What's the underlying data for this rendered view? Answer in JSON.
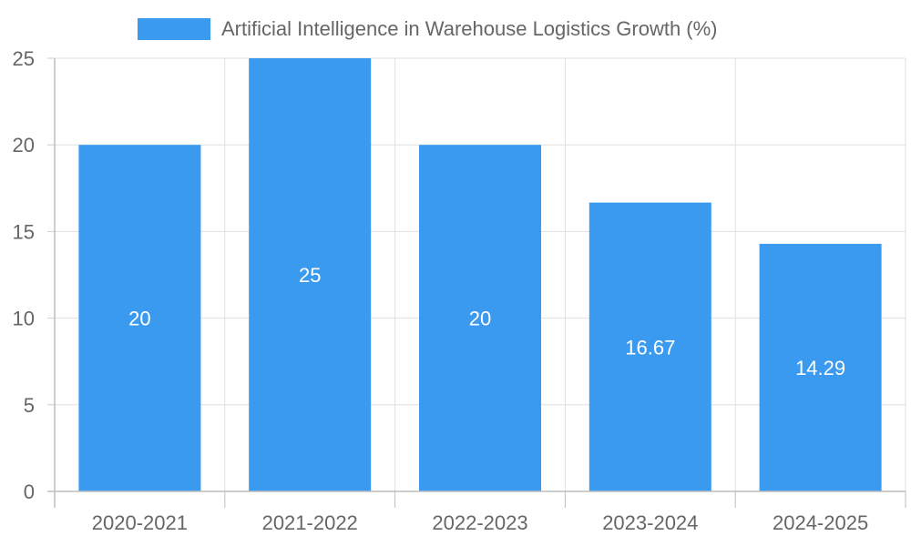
{
  "chart_data": {
    "type": "bar",
    "categories": [
      "2020-2021",
      "2021-2022",
      "2022-2023",
      "2023-2024",
      "2024-2025"
    ],
    "series": [
      {
        "name": "Artificial Intelligence in Warehouse Logistics Growth (%)",
        "values": [
          20,
          25,
          20,
          16.67,
          14.29
        ],
        "color": "#3a9af0"
      }
    ],
    "data_labels": [
      "20",
      "25",
      "20",
      "16.67",
      "14.29"
    ],
    "y_ticks": [
      "0",
      "5",
      "10",
      "15",
      "20",
      "25"
    ],
    "ylim": [
      0,
      25
    ],
    "grid": true,
    "legend_position": "top-center"
  }
}
